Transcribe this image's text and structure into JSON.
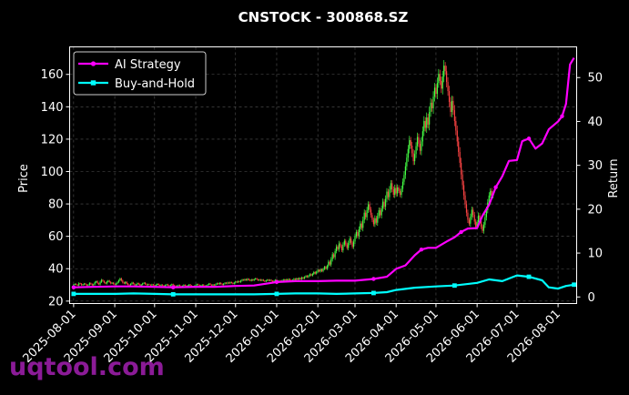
{
  "watermark": "uqtool.com",
  "chart_data": {
    "type": "line",
    "title": "CNSTOCK - 300868.SZ",
    "ylabel": "Price",
    "y2label": "Return",
    "xlim": [
      "2025-07-29",
      "2026-08-15"
    ],
    "ylim": [
      18.5,
      177
    ],
    "y2lim": [
      -1.5,
      57
    ],
    "grid": true,
    "legend_placement": "top-left",
    "xticks": [
      "2025-08-01",
      "2025-09-01",
      "2025-10-01",
      "2025-11-01",
      "2025-12-01",
      "2026-01-01",
      "2026-02-01",
      "2026-03-01",
      "2026-04-01",
      "2026-05-01",
      "2026-06-01",
      "2026-07-01",
      "2026-08-01"
    ],
    "yticks": [
      20,
      40,
      60,
      80,
      100,
      120,
      140,
      160
    ],
    "y2ticks": [
      0,
      10,
      20,
      30,
      40,
      50
    ],
    "colors": {
      "background": "#000000",
      "text": "#ffffff",
      "grid": "#555555",
      "up": "#44ff44",
      "down": "#ff4444",
      "strategy": "#ff00ff",
      "buyhold": "#00ffff"
    },
    "series": [
      {
        "name": "AI Strategy",
        "axis": "right",
        "marker": "circle",
        "color": "#ff00ff",
        "x": [
          "2025-08-01",
          "2025-08-15",
          "2025-09-01",
          "2025-09-15",
          "2025-10-01",
          "2025-10-15",
          "2025-11-01",
          "2025-11-15",
          "2025-12-01",
          "2025-12-15",
          "2026-01-01",
          "2026-01-15",
          "2026-02-01",
          "2026-02-15",
          "2026-03-01",
          "2026-03-15",
          "2026-03-25",
          "2026-04-01",
          "2026-04-08",
          "2026-04-15",
          "2026-04-20",
          "2026-04-25",
          "2026-05-01",
          "2026-05-10",
          "2026-05-15",
          "2026-05-20",
          "2026-05-25",
          "2026-06-01",
          "2026-06-05",
          "2026-06-10",
          "2026-06-15",
          "2026-06-20",
          "2026-06-25",
          "2026-07-01",
          "2026-07-05",
          "2026-07-10",
          "2026-07-15",
          "2026-07-20",
          "2026-07-25",
          "2026-08-01",
          "2026-08-04",
          "2026-08-07",
          "2026-08-10",
          "2026-08-13"
        ],
        "values": [
          2.2,
          2.3,
          2.4,
          2.4,
          2.3,
          2.2,
          2.3,
          2.3,
          2.5,
          2.6,
          3.4,
          3.6,
          3.6,
          3.7,
          3.7,
          4.1,
          4.6,
          6.4,
          7.2,
          9.5,
          10.8,
          11.2,
          11.2,
          12.8,
          13.6,
          14.8,
          15.6,
          15.7,
          18.5,
          21.0,
          25.0,
          27.5,
          31.0,
          31.2,
          35.5,
          36.1,
          33.8,
          35.0,
          38.2,
          40.0,
          41.2,
          44.0,
          53.0,
          54.5
        ]
      },
      {
        "name": "Buy-and-Hold",
        "axis": "right",
        "marker": "square",
        "color": "#00ffff",
        "x": [
          "2025-08-01",
          "2025-08-15",
          "2025-09-01",
          "2025-09-15",
          "2025-10-01",
          "2025-10-15",
          "2025-11-01",
          "2025-11-15",
          "2025-12-01",
          "2025-12-15",
          "2026-01-01",
          "2026-01-15",
          "2026-02-01",
          "2026-02-15",
          "2026-03-01",
          "2026-03-15",
          "2026-03-25",
          "2026-04-01",
          "2026-04-15",
          "2026-05-01",
          "2026-05-15",
          "2026-06-01",
          "2026-06-10",
          "2026-06-20",
          "2026-07-01",
          "2026-07-10",
          "2026-07-20",
          "2026-07-25",
          "2026-08-01",
          "2026-08-07",
          "2026-08-13"
        ],
        "values": [
          0.7,
          0.7,
          0.7,
          0.8,
          0.7,
          0.6,
          0.6,
          0.6,
          0.6,
          0.6,
          0.7,
          0.8,
          0.8,
          0.7,
          0.8,
          0.9,
          1.1,
          1.6,
          2.1,
          2.4,
          2.6,
          3.2,
          4.0,
          3.6,
          4.9,
          4.6,
          3.8,
          2.2,
          1.9,
          2.5,
          2.8
        ]
      }
    ],
    "price_candles": {
      "start": "2025-08-01",
      "step_days": 1,
      "close": [
        30.2,
        30.6,
        30.1,
        29.8,
        31.0,
        30.7,
        29.9,
        30.3,
        30.8,
        30.2,
        29.6,
        30.1,
        31.1,
        30.5,
        29.8,
        30.4,
        31.6,
        32.2,
        31.0,
        30.3,
        31.8,
        33.1,
        32.4,
        31.5,
        30.8,
        31.9,
        32.6,
        31.8,
        30.9,
        31.3,
        30.6,
        30.1,
        30.8,
        31.7,
        32.8,
        33.9,
        32.7,
        31.5,
        30.9,
        31.8,
        30.8,
        30.1,
        29.9,
        30.6,
        31.4,
        30.7,
        29.8,
        30.2,
        31.0,
        30.4,
        29.6,
        30.2,
        30.9,
        31.3,
        30.5,
        29.9,
        30.4,
        30.1,
        29.7,
        30.3,
        29.8,
        29.4,
        30.0,
        30.6,
        29.9,
        29.5,
        30.1,
        29.6,
        29.2,
        29.8,
        30.3,
        29.7,
        29.3,
        29.9,
        30.4,
        29.8,
        29.4,
        28.9,
        29.5,
        29.9,
        29.3,
        28.8,
        29.4,
        30.0,
        29.5,
        29.0,
        29.6,
        30.2,
        29.6,
        29.1,
        28.7,
        29.3,
        29.9,
        30.4,
        29.8,
        29.2,
        29.7,
        30.1,
        29.5,
        29.0,
        29.6,
        30.2,
        30.8,
        30.1,
        29.6,
        30.2,
        29.7,
        30.4,
        31.0,
        30.5,
        31.2,
        30.6,
        30.1,
        30.7,
        31.3,
        30.8,
        31.5,
        31.0,
        31.7,
        31.2,
        30.7,
        31.4,
        32.1,
        31.6,
        32.3,
        31.8,
        32.6,
        33.3,
        32.8,
        33.5,
        32.9,
        33.7,
        33.1,
        32.6,
        33.3,
        32.8,
        33.5,
        34.0,
        33.4,
        32.8,
        33.3,
        32.7,
        33.2,
        32.6,
        32.1,
        32.7,
        33.2,
        32.6,
        33.1,
        32.5,
        32.0,
        32.6,
        33.1,
        32.5,
        32.0,
        32.6,
        32.1,
        32.7,
        33.3,
        32.8,
        33.4,
        32.9,
        33.6,
        33.0,
        32.5,
        33.1,
        33.8,
        33.2,
        34.0,
        33.4,
        34.2,
        33.6,
        34.6,
        34.0,
        34.9,
        35.6,
        34.8,
        35.7,
        36.6,
        35.8,
        36.8,
        37.9,
        37.0,
        38.1,
        39.2,
        38.3,
        39.6,
        38.5,
        39.8,
        41.1,
        40.0,
        41.7,
        44.3,
        42.6,
        45.8,
        48.9,
        47.1,
        50.8,
        53.7,
        52.0,
        55.6,
        53.8,
        51.4,
        54.8,
        57.2,
        55.0,
        52.8,
        55.9,
        58.6,
        56.1,
        53.6,
        56.8,
        59.9,
        62.7,
        60.1,
        64.3,
        67.9,
        65.2,
        70.1,
        74.6,
        71.8,
        76.2,
        79.8,
        76.5,
        73.1,
        70.2,
        67.5,
        71.2,
        68.4,
        72.6,
        76.1,
        73.0,
        77.2,
        81.4,
        78.3,
        83.1,
        87.6,
        84.2,
        88.9,
        92.8,
        89.1,
        85.7,
        89.9,
        86.5,
        90.2,
        88.0,
        85.6,
        89.4,
        93.7,
        97.9,
        103.2,
        108.6,
        113.9,
        119.4,
        116.0,
        111.3,
        106.4,
        110.8,
        115.7,
        121.3,
        117.2,
        112.8,
        118.6,
        124.9,
        131.2,
        127.0,
        133.4,
        129.0,
        136.8,
        142.5,
        139.1,
        146.2,
        151.8,
        148.0,
        154.7,
        160.3,
        156.0,
        151.2,
        158.6,
        165.4,
        162.0,
        155.3,
        149.7,
        143.0,
        136.8,
        143.6,
        137.9,
        131.2,
        125.3,
        118.6,
        112.1,
        105.4,
        98.2,
        91.6,
        85.3,
        79.8,
        74.6,
        70.2,
        67.8,
        72.1,
        76.4,
        73.2,
        69.1,
        65.8,
        68.7,
        72.9,
        69.5,
        66.1,
        63.4,
        67.2,
        71.8,
        76.3,
        80.9,
        85.2,
        88.1,
        84.7,
        86.6
      ]
    }
  }
}
